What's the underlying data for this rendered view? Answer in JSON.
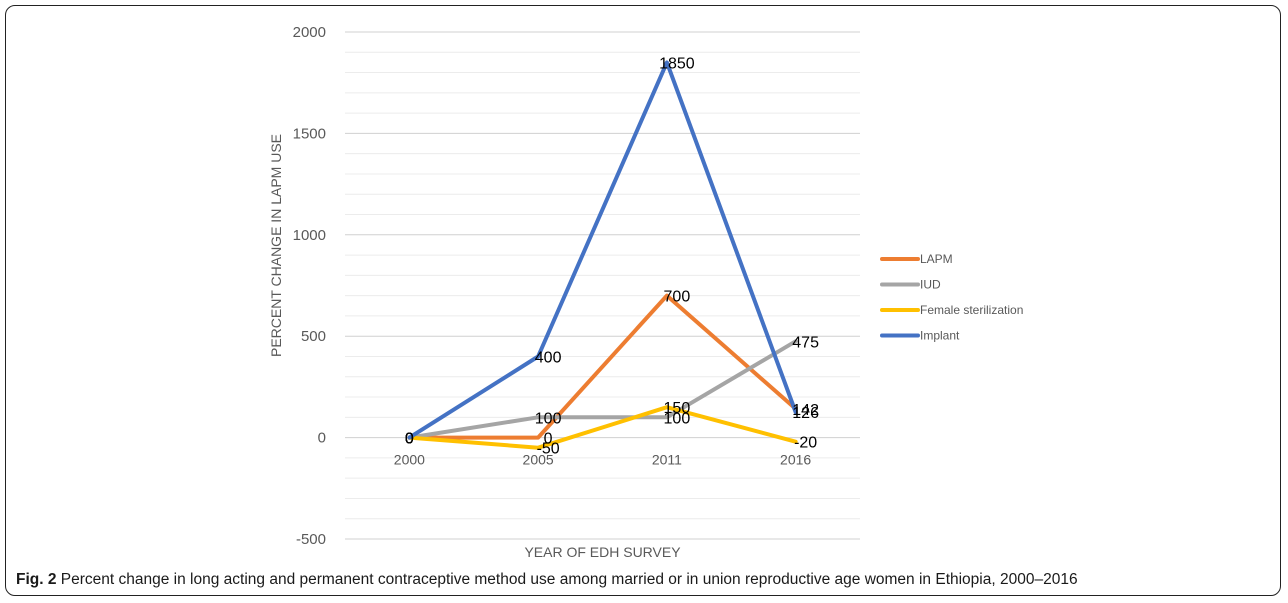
{
  "chart_data": {
    "type": "line",
    "title": "",
    "xlabel": "YEAR OF EDH SURVEY",
    "ylabel": "PERCENT CHANGE IN LAPM USE",
    "categories": [
      "2000",
      "2005",
      "2011",
      "2016"
    ],
    "ylim": [
      -500,
      2000
    ],
    "yticks": [
      -500,
      0,
      500,
      1000,
      1500,
      2000
    ],
    "ytick_labels": [
      "-500",
      "0",
      "500",
      "1000",
      "1500",
      "2000"
    ],
    "grid": true,
    "legend_position": "right",
    "series": [
      {
        "name": "LAPM",
        "color": "#ED7D31",
        "values": [
          0,
          0,
          700,
          142
        ],
        "labels": [
          "0",
          "0",
          "700",
          "142"
        ]
      },
      {
        "name": "IUD",
        "color": "#A5A5A5",
        "values": [
          0,
          100,
          100,
          475
        ],
        "labels": [
          "0",
          "100",
          "100",
          "475"
        ]
      },
      {
        "name": "Female sterilization",
        "color": "#FFC000",
        "values": [
          0,
          -50,
          150,
          -20
        ],
        "labels": [
          "0",
          "-50",
          "150",
          "-20"
        ]
      },
      {
        "name": "Implant",
        "color": "#4472C4",
        "values": [
          0,
          400,
          1850,
          126
        ],
        "labels": [
          "0",
          "400",
          "1850",
          "126"
        ]
      }
    ]
  },
  "caption": {
    "figure_label": "Fig. 2",
    "text": "Percent change in long acting and permanent contraceptive method use among married or in union reproductive age women in Ethiopia, 2000–2016"
  }
}
